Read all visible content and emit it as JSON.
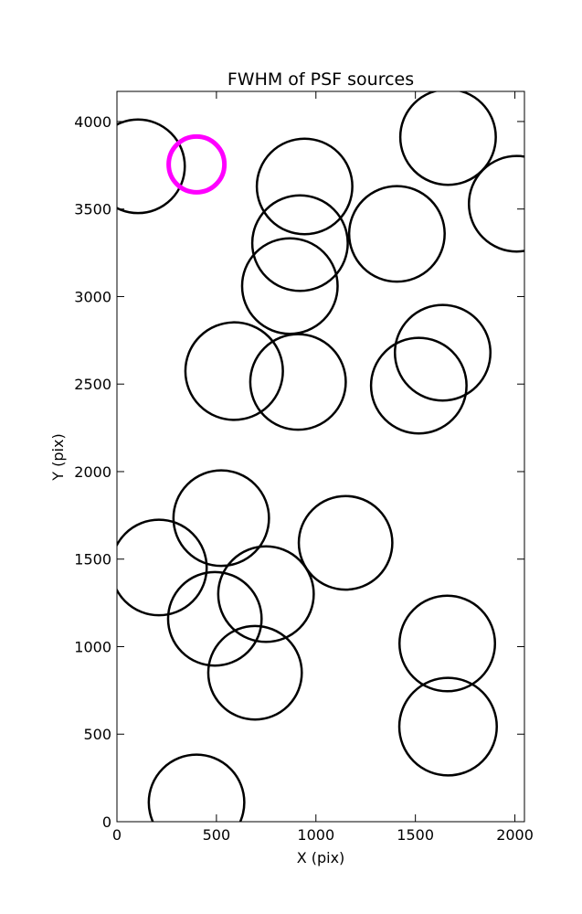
{
  "chart_data": {
    "type": "scatter",
    "title": "FWHM of PSF sources",
    "x_label": "X (pix)",
    "y_label": "Y (pix)",
    "xlim": [
      0,
      2048
    ],
    "ylim": [
      0,
      4172
    ],
    "xticks": [
      0,
      500,
      1000,
      1500,
      2000
    ],
    "yticks": [
      0,
      500,
      1000,
      1500,
      2000,
      2500,
      3000,
      3500,
      4000
    ],
    "series": [
      {
        "color": "#000000",
        "x": [
          106,
          943,
          1664,
          2009,
          1407,
          920,
          869,
          589,
          910,
          1637,
          1517,
          524,
          211,
          1149,
          749,
          492,
          1660,
          694,
          1664,
          400
        ],
        "values": [
          3744,
          3629,
          3911,
          3530,
          3358,
          3305,
          3060,
          2574,
          2512,
          2679,
          2491,
          1734,
          1452,
          1593,
          1300,
          1159,
          1018,
          851,
          543,
          110
        ],
        "sizes": [
          235,
          240,
          240,
          240,
          240,
          240,
          240,
          245,
          240,
          240,
          240,
          240,
          240,
          235,
          240,
          235,
          240,
          235,
          245,
          240
        ]
      },
      {
        "color": "#ff00ff",
        "x": [
          400
        ],
        "values": [
          3755
        ],
        "sizes": [
          140
        ]
      }
    ]
  }
}
